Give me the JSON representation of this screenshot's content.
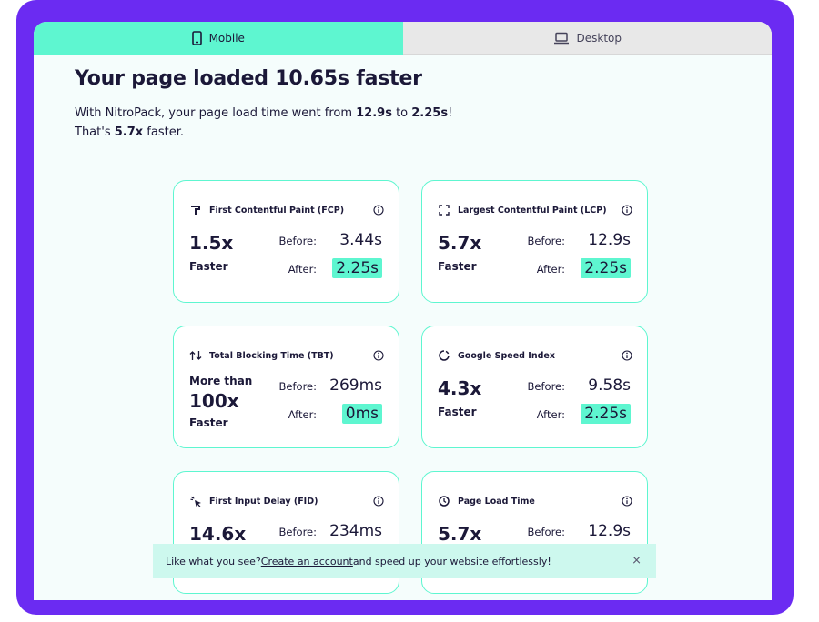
{
  "tabs": {
    "mobile": {
      "label": "Mobile",
      "icon": "phone-icon"
    },
    "desktop": {
      "label": "Desktop",
      "icon": "laptop-icon"
    }
  },
  "headline": "Your page loaded 10.65s faster",
  "summary": {
    "line1_prefix": "With NitroPack, your page load time went from ",
    "from": "12.9s",
    "to_word": " to ",
    "to": "2.25s",
    "line1_suffix": "!",
    "line2_prefix": "That's ",
    "times": "5.7x",
    "line2_suffix": " faster."
  },
  "labels": {
    "before": "Before:",
    "after": "After:",
    "faster": "Faster"
  },
  "metrics": {
    "fcp": {
      "title": "First Contentful Paint (FCP)",
      "icon": "paint-icon",
      "multiplier": "1.5x",
      "before": "3.44s",
      "after": "2.25s"
    },
    "lcp": {
      "title": "Largest Contentful Paint (LCP)",
      "icon": "frame-corners-icon",
      "multiplier": "5.7x",
      "before": "12.9s",
      "after": "2.25s"
    },
    "tbt": {
      "title": "Total Blocking Time (TBT)",
      "icon": "arrows-icon",
      "prefix": "More than",
      "multiplier": "100x",
      "before": "269ms",
      "after": "0ms"
    },
    "gsi": {
      "title": "Google Speed Index",
      "icon": "spinner-icon",
      "multiplier": "4.3x",
      "before": "9.58s",
      "after": "2.25s"
    },
    "fid": {
      "title": "First Input Delay (FID)",
      "icon": "click-icon",
      "multiplier": "14.6x",
      "before": "234ms"
    },
    "plt": {
      "title": "Page Load Time",
      "icon": "clock-icon",
      "multiplier": "5.7x",
      "before": "12.9s"
    }
  },
  "banner": {
    "prefix": "Like what you see? ",
    "link": "Create an account",
    "suffix": " and speed up your website effortlessly!",
    "close": "×"
  },
  "colors": {
    "accent": "#5ef6d0",
    "frame": "#6b2bf2",
    "text": "#1b1838"
  }
}
